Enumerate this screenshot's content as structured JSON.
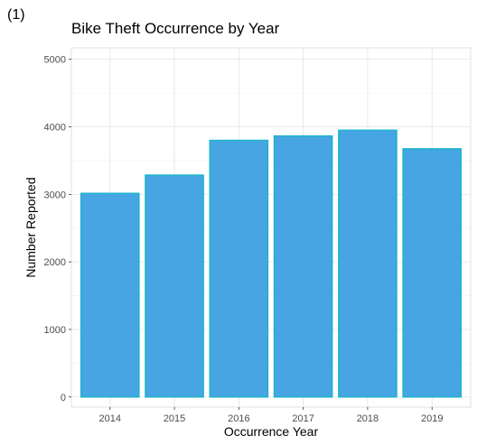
{
  "panel_tag": "(1)",
  "chart_data": {
    "type": "bar",
    "title": "Bike Theft Occurrence by Year",
    "xlabel": "Occurrence Year",
    "ylabel": "Number Reported",
    "categories": [
      "2014",
      "2015",
      "2016",
      "2017",
      "2018",
      "2019"
    ],
    "values": [
      3015,
      3285,
      3800,
      3865,
      3950,
      3675
    ],
    "ylim": [
      -150,
      5170
    ],
    "yticks": [
      0,
      1000,
      2000,
      3000,
      4000,
      5000
    ],
    "grid": true,
    "legend": "none",
    "bar_fill": "#46a5e2",
    "bar_stroke": "#1fb5c9",
    "grid_major": "#e3e3e3",
    "grid_minor": "#f1f1f1",
    "panel_border": "#d9d9d9"
  }
}
